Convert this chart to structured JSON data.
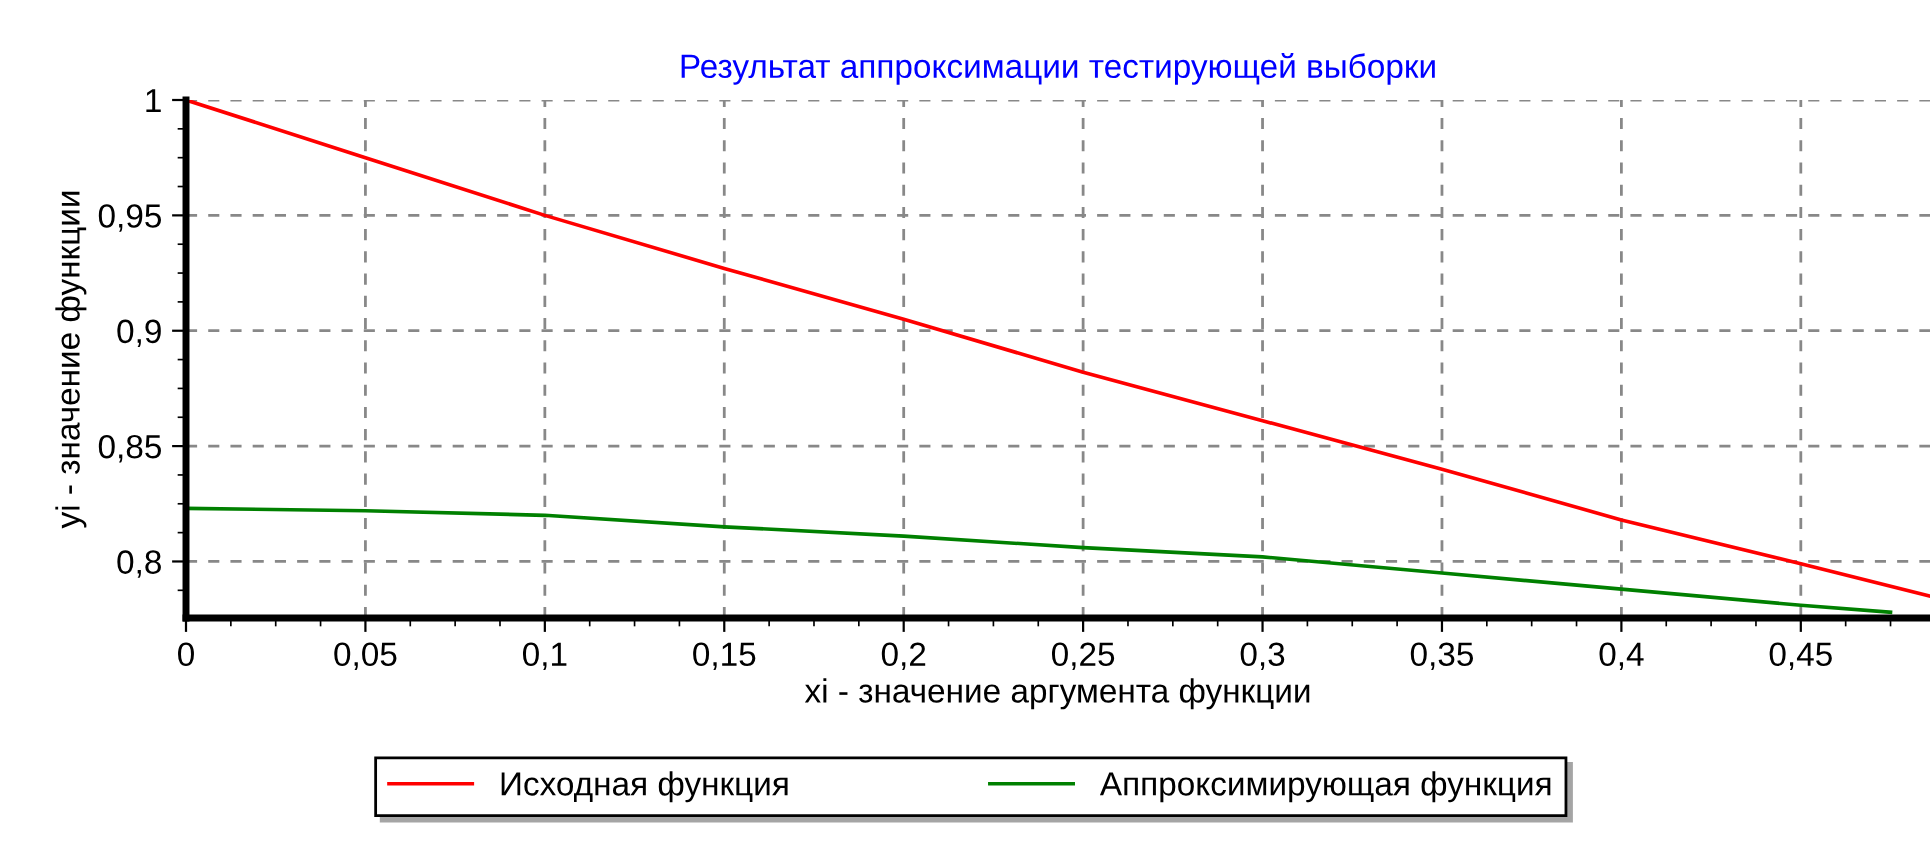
{
  "chart_data": {
    "type": "line",
    "title": "Результат аппроксимации тестирующей выборки",
    "xlabel": "xi - значение аргумента функции",
    "ylabel": "yi - значение функции",
    "series": [
      {
        "name": "Исходная функция",
        "color": "#ff0000",
        "x": [
          0,
          0.05,
          0.1,
          0.15,
          0.2,
          0.25,
          0.3,
          0.35,
          0.4,
          0.45,
          0.486
        ],
        "values": [
          1,
          0.975,
          0.95,
          0.927,
          0.905,
          0.882,
          0.861,
          0.84,
          0.818,
          0.799,
          0.785
        ]
      },
      {
        "name": "Аппроксимирующая функция",
        "color": "#008000",
        "x": [
          0,
          0.05,
          0.1,
          0.15,
          0.2,
          0.25,
          0.3,
          0.35,
          0.4,
          0.45,
          0.475
        ],
        "values": [
          0.823,
          0.822,
          0.82,
          0.815,
          0.811,
          0.806,
          0.802,
          0.795,
          0.788,
          0.781,
          0.778
        ]
      }
    ],
    "xlim": [
      0,
      0.486
    ],
    "ylim": [
      0.7755,
      1
    ],
    "xticks": [
      0,
      {
        "value": 0.05,
        "label": "0,05"
      },
      {
        "value": 0.1,
        "label": "0,1"
      },
      {
        "value": 0.15,
        "label": "0,15"
      },
      {
        "value": 0.2,
        "label": "0,2"
      },
      {
        "value": 0.25,
        "label": "0,25"
      },
      {
        "value": 0.3,
        "label": "0,3"
      },
      {
        "value": 0.35,
        "label": "0,35"
      },
      {
        "value": 0.4,
        "label": "0,4"
      },
      {
        "value": 0.45,
        "label": "0,45"
      }
    ],
    "yticks": [
      {
        "value": 0.8,
        "label": "0,8"
      },
      {
        "value": 0.85,
        "label": "0,85"
      },
      {
        "value": 0.9,
        "label": "0,9"
      },
      {
        "value": 0.95,
        "label": "0,95"
      },
      1
    ],
    "grid": true,
    "legend": "bottom",
    "line_style": "solid",
    "marker": "none"
  }
}
